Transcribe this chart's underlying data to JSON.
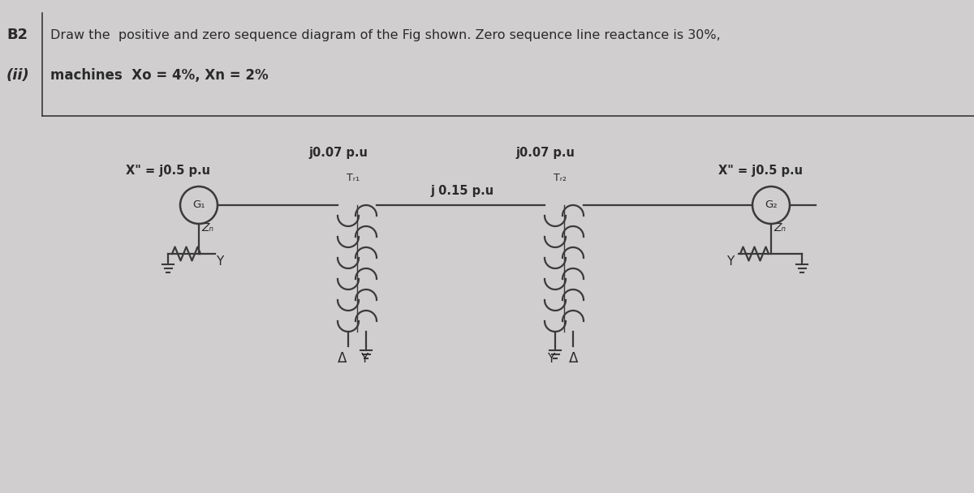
{
  "bg_color": "#d0cece",
  "text_color": "#2a2a2a",
  "title_b2": "B2",
  "title_ii": "(ii)",
  "line1": "Draw the  positive and zero sequence diagram of the Fig shown. Zero sequence line reactance is 30%,",
  "line2": "machines  Xo = 4%, Xn = 2%",
  "label_j007_left": "j0.07 p.u",
  "label_j007_right": "j0.07 p.u",
  "label_j015": "j 0.15 p.u",
  "label_xpp_left": "X\" = j0.5 p.u",
  "label_xpp_right": "X\" = j0.5 p.u",
  "label_G1": "G₁",
  "label_G2": "G₂",
  "label_Zn": "Zₙ",
  "label_Tr1": "Tᵣ₁",
  "label_Tr2": "Tᵣ₂",
  "lc": "#3a3a3a",
  "lw": 1.6
}
